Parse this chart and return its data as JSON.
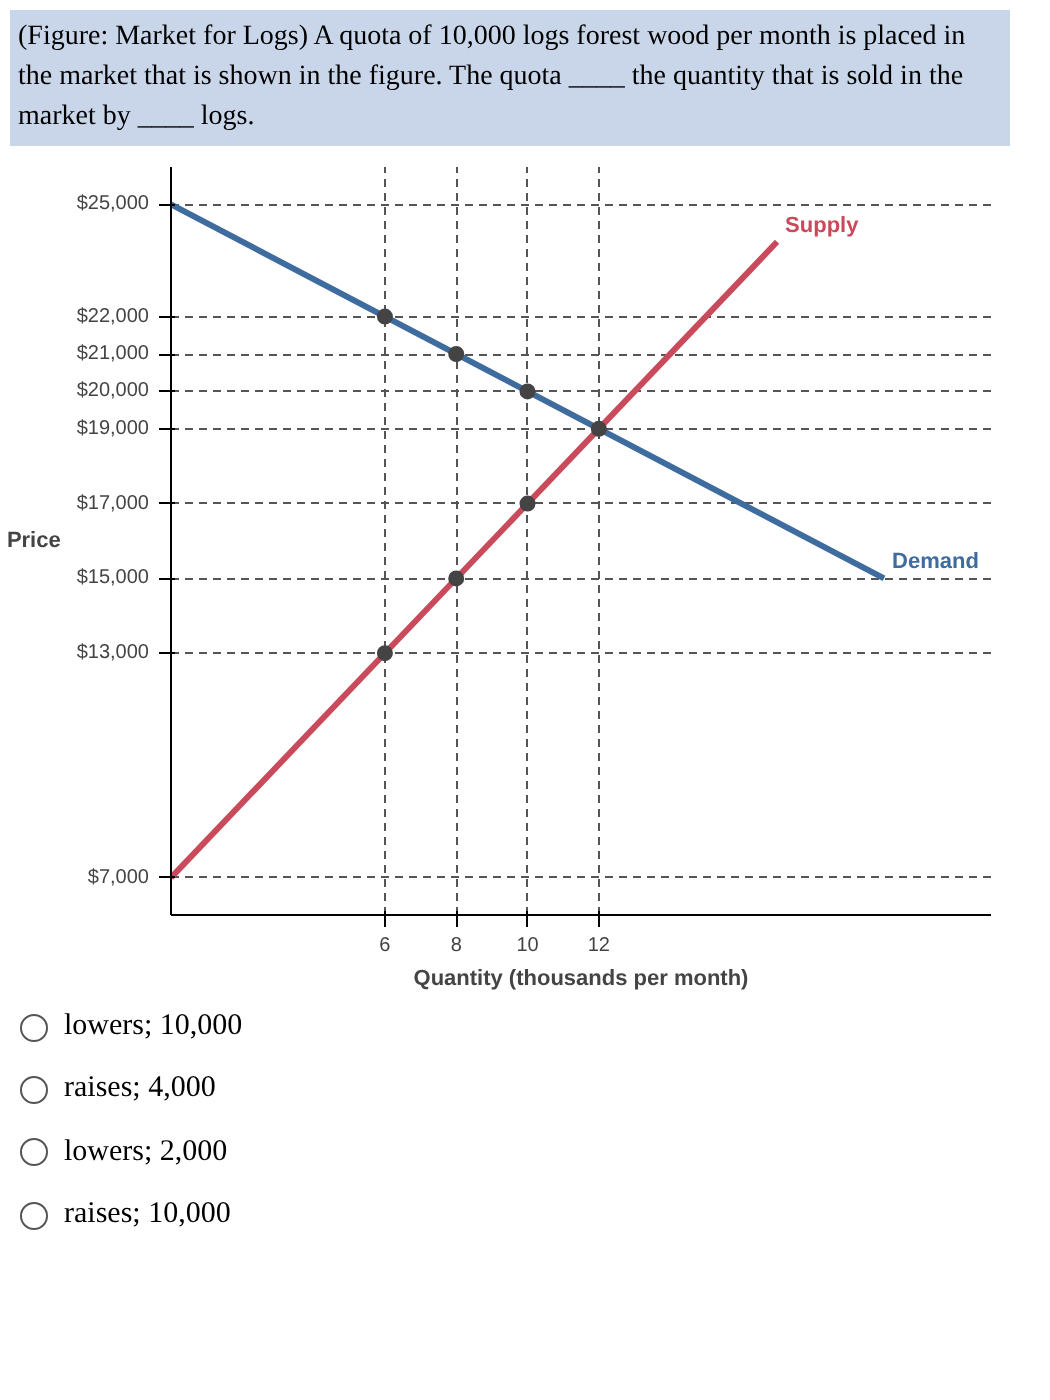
{
  "chart_data": {
    "type": "line",
    "title": "(Figure: Market for Logs) A quota of 10,000 logs forest wood per month is placed in the market that is shown in the figure. The quota ____ the quantity that is sold in the market by ____ logs.",
    "xlabel": "Quantity (thousands per month)",
    "ylabel": "Price",
    "xlim": [
      0,
      23
    ],
    "ylim": [
      6000,
      26000
    ],
    "xticks": [
      6,
      8,
      10,
      12
    ],
    "yticks": [
      {
        "value": 7000,
        "label": "$7,000"
      },
      {
        "value": 13000,
        "label": "$13,000"
      },
      {
        "value": 15000,
        "label": "$15,000"
      },
      {
        "value": 17000,
        "label": "$17,000"
      },
      {
        "value": 19000,
        "label": "$19,000"
      },
      {
        "value": 20000,
        "label": "$20,000"
      },
      {
        "value": 21000,
        "label": "$21,000"
      },
      {
        "value": 22000,
        "label": "$22,000"
      },
      {
        "value": 25000,
        "label": "$25,000"
      }
    ],
    "grid": true,
    "line_style": "solid",
    "series": [
      {
        "name": "Supply",
        "color": "#c94a5a",
        "x": [
          0,
          17
        ],
        "values": [
          7000,
          24000
        ]
      },
      {
        "name": "Demand",
        "color": "#3f6c9e",
        "x": [
          0,
          20
        ],
        "values": [
          25000,
          15000
        ]
      },
      {
        "type": "scatter",
        "color": "#444444",
        "x": [
          6,
          8,
          10,
          12,
          6,
          8,
          10
        ],
        "values": [
          13000,
          15000,
          17000,
          19000,
          22000,
          21000,
          20000
        ]
      }
    ],
    "annotations": [
      "lowers; 10,000",
      "raises; 4,000",
      "lowers; 2,000",
      "raises; 10,000"
    ]
  }
}
